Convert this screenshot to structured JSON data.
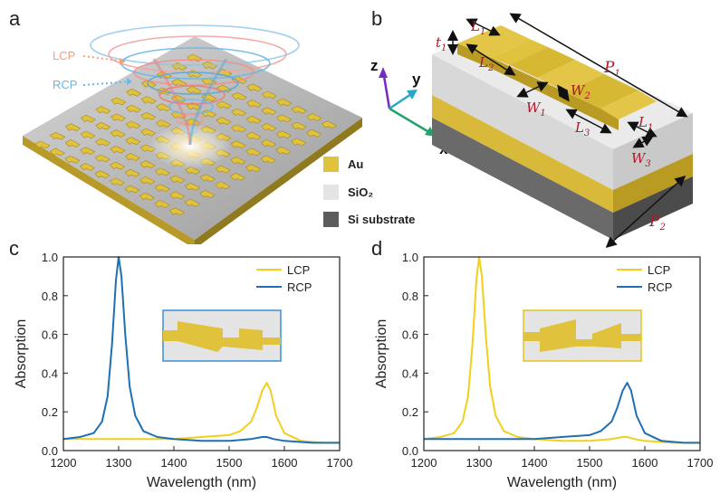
{
  "panels": {
    "a": {
      "letter": "a",
      "lcp_label": "LCP",
      "rcp_label": "RCP"
    },
    "b": {
      "letter": "b",
      "dimensions": {
        "t1": "t",
        "t1_sub": "1",
        "L1": "L",
        "L1_sub": "1",
        "L2": "L",
        "L2_sub": "2",
        "L3": "L",
        "L3_sub": "3",
        "W1": "W",
        "W1_sub": "1",
        "W2": "W",
        "W2_sub": "2",
        "W3": "W",
        "W3_sub": "3",
        "P1": "P",
        "P1_sub": "1",
        "P2": "P",
        "P2_sub": "2"
      },
      "axes": {
        "x": "x",
        "y": "y",
        "z": "z"
      }
    },
    "c": {
      "letter": "c"
    },
    "d": {
      "letter": "d"
    }
  },
  "materials_legend": [
    {
      "label": "Au",
      "color": "#e0c23c"
    },
    {
      "label": "SiO₂",
      "color": "#e4e4e4"
    },
    {
      "label": "Si substrate",
      "color": "#5c5c5c"
    }
  ],
  "colors": {
    "lcp": "#f2cf1d",
    "rcp": "#1f6fb5",
    "gold": "#e0c23c",
    "inset_bg": "#e4e4e4"
  },
  "chart_data": [
    {
      "panel": "c",
      "type": "line",
      "xlabel": "Wavelength (nm)",
      "ylabel": "Absorption",
      "xlim": [
        1200,
        1700
      ],
      "ylim": [
        0,
        1.0
      ],
      "xticks": [
        1200,
        1300,
        1400,
        1500,
        1600,
        1700
      ],
      "yticks": [
        0.0,
        0.2,
        0.4,
        0.6,
        0.8,
        1.0
      ],
      "legend": "top-right",
      "inset_frame_color": "#3a8fd8",
      "series": [
        {
          "name": "LCP",
          "color": "#f2cf1d",
          "x": [
            1200,
            1240,
            1280,
            1300,
            1350,
            1400,
            1450,
            1500,
            1520,
            1540,
            1550,
            1560,
            1568,
            1575,
            1585,
            1600,
            1630,
            1670,
            1700
          ],
          "y": [
            0.06,
            0.06,
            0.06,
            0.06,
            0.06,
            0.06,
            0.07,
            0.08,
            0.1,
            0.15,
            0.22,
            0.31,
            0.35,
            0.31,
            0.18,
            0.09,
            0.05,
            0.04,
            0.04
          ]
        },
        {
          "name": "RCP",
          "color": "#1f6fb5",
          "x": [
            1200,
            1230,
            1255,
            1270,
            1280,
            1288,
            1295,
            1300,
            1305,
            1312,
            1320,
            1330,
            1345,
            1370,
            1400,
            1450,
            1500,
            1540,
            1560,
            1568,
            1580,
            1600,
            1650,
            1700
          ],
          "y": [
            0.06,
            0.07,
            0.09,
            0.15,
            0.28,
            0.55,
            0.88,
            1.0,
            0.9,
            0.6,
            0.33,
            0.18,
            0.1,
            0.07,
            0.06,
            0.05,
            0.05,
            0.06,
            0.07,
            0.07,
            0.06,
            0.05,
            0.04,
            0.04
          ]
        }
      ]
    },
    {
      "panel": "d",
      "type": "line",
      "xlabel": "Wavelength (nm)",
      "ylabel": "Absorption",
      "xlim": [
        1200,
        1700
      ],
      "ylim": [
        0,
        1.0
      ],
      "xticks": [
        1200,
        1300,
        1400,
        1500,
        1600,
        1700
      ],
      "yticks": [
        0.0,
        0.2,
        0.4,
        0.6,
        0.8,
        1.0
      ],
      "legend": "top-right",
      "inset_frame_color": "#e6c21a",
      "series": [
        {
          "name": "LCP",
          "color": "#f2cf1d",
          "x": [
            1200,
            1230,
            1255,
            1270,
            1280,
            1288,
            1295,
            1300,
            1305,
            1312,
            1320,
            1330,
            1345,
            1370,
            1400,
            1450,
            1500,
            1540,
            1560,
            1568,
            1580,
            1600,
            1650,
            1700
          ],
          "y": [
            0.06,
            0.07,
            0.09,
            0.15,
            0.28,
            0.55,
            0.88,
            1.0,
            0.9,
            0.6,
            0.33,
            0.18,
            0.1,
            0.07,
            0.06,
            0.05,
            0.05,
            0.06,
            0.07,
            0.07,
            0.06,
            0.05,
            0.04,
            0.04
          ]
        },
        {
          "name": "RCP",
          "color": "#1f6fb5",
          "x": [
            1200,
            1240,
            1280,
            1300,
            1350,
            1400,
            1450,
            1500,
            1520,
            1540,
            1550,
            1560,
            1568,
            1575,
            1585,
            1600,
            1630,
            1670,
            1700
          ],
          "y": [
            0.06,
            0.06,
            0.06,
            0.06,
            0.06,
            0.06,
            0.07,
            0.08,
            0.1,
            0.15,
            0.22,
            0.31,
            0.35,
            0.31,
            0.18,
            0.09,
            0.05,
            0.04,
            0.04
          ]
        }
      ]
    }
  ]
}
